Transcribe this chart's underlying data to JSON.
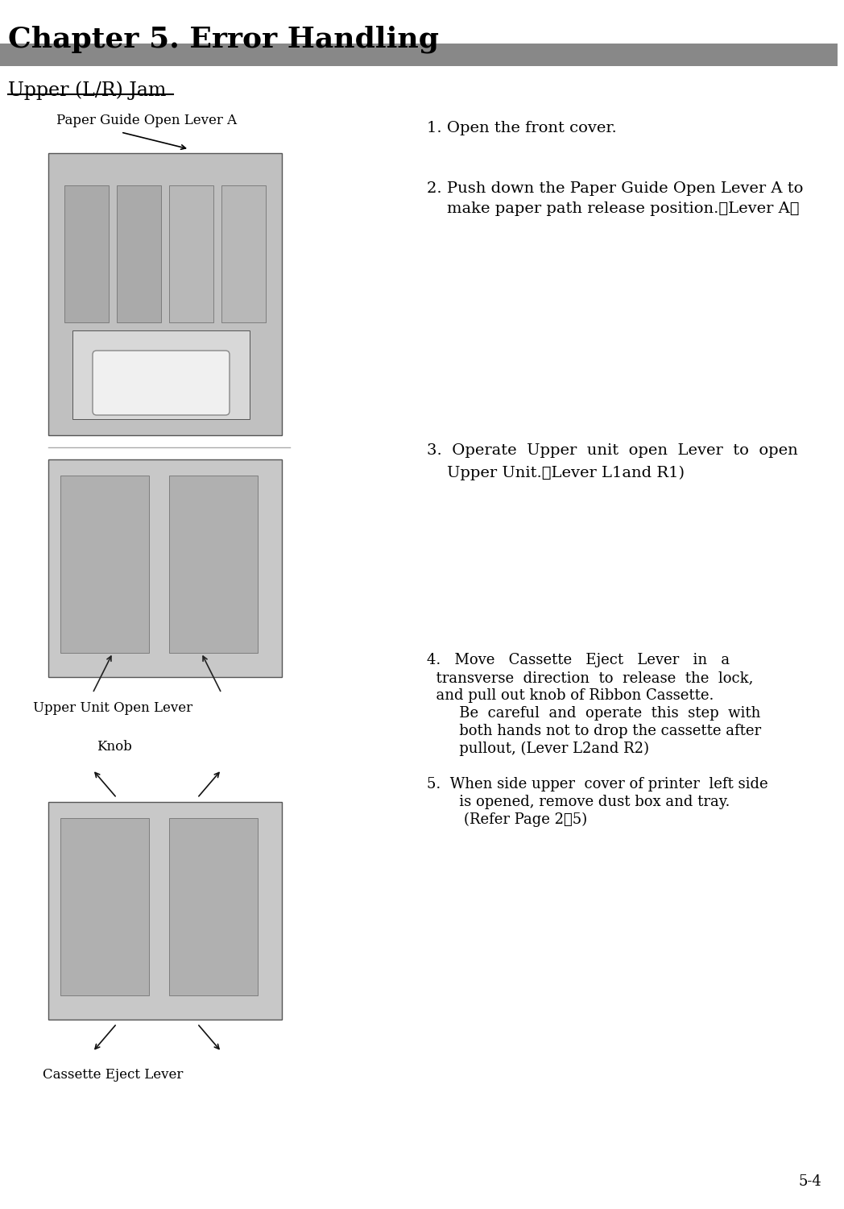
{
  "title": "Chapter 5. Error Handling",
  "section": "Upper (L/R) Jam",
  "page_num": "5-4",
  "bg_color": "#ffffff",
  "header_bar_color": "#888888",
  "step1": "1. Open the front cover.",
  "step2_line1": "2. Push down the Paper Guide Open Lever A to",
  "step2_line2": "    make paper path release position.（Lever A）",
  "step3_line1": "3.  Operate  Upper  unit  open  Lever  to  open",
  "step3_line2": "    Upper Unit.（Lever L1and R1)",
  "step4_line1": "4.   Move   Cassette   Eject   Lever   in   a",
  "step4_line2": "  transverse  direction  to  release  the  lock,",
  "step4_line3": "  and pull out knob of Ribbon Cassette.",
  "step4_line4": "       Be  careful  and  operate  this  step  with",
  "step4_line5": "       both hands not to drop the cassette after",
  "step4_line6": "       pullout, (Lever L2and R2)",
  "step5_line1": "5.  When side upper  cover of printer  left side",
  "step5_line2": "       is opened, remove dust box and tray.",
  "step5_line3": "        (Refer Page 2－5)",
  "label_A": "Paper Guide Open Lever A",
  "label_B": "Upper Unit Open Lever",
  "label_C": "Knob",
  "label_D": "Cassette Eject Lever"
}
